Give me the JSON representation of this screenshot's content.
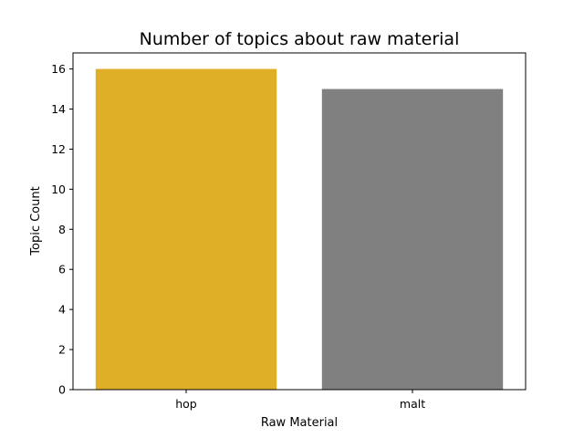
{
  "chart_data": {
    "type": "bar",
    "title": "Number of topics about raw material",
    "xlabel": "Raw Material",
    "ylabel": "Topic Count",
    "categories": [
      "hop",
      "malt"
    ],
    "values": [
      16,
      15
    ],
    "colors": [
      "#dfaf27",
      "#808080"
    ],
    "ylim": [
      0,
      16.8
    ],
    "yticks": [
      0,
      2,
      4,
      6,
      8,
      10,
      12,
      14,
      16
    ],
    "grid": false,
    "legend": "none"
  }
}
